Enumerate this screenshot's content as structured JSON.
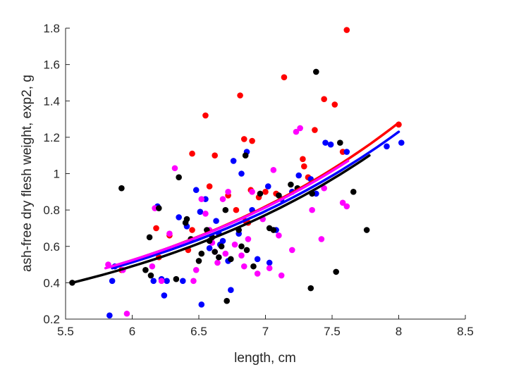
{
  "chart_data": {
    "type": "scatter",
    "title": "",
    "xlabel": "length, cm",
    "ylabel": "ash-free dry flesh weight, exp2, g",
    "xlim": [
      5.5,
      8.5
    ],
    "ylim": [
      0.2,
      1.8
    ],
    "xticks": [
      5.5,
      6,
      6.5,
      7,
      7.5,
      8,
      8.5
    ],
    "xtick_labels": [
      "5.5",
      "6",
      "6.5",
      "7",
      "7.5",
      "8",
      "8.5"
    ],
    "yticks": [
      0.2,
      0.4,
      0.6,
      0.8,
      1.0,
      1.2,
      1.4,
      1.6,
      1.8
    ],
    "ytick_labels": [
      "0.2",
      "0.4",
      "0.6",
      "0.8",
      "1",
      "1.2",
      "1.4",
      "1.6",
      "1.8"
    ],
    "grid": false,
    "legend": "none",
    "series": [
      {
        "color": "#ff0000",
        "x": [
          5.92,
          6.18,
          6.2,
          6.28,
          6.42,
          6.45,
          6.45,
          6.55,
          6.58,
          6.62,
          6.72,
          6.78,
          6.81,
          6.84,
          6.85,
          6.87,
          6.89,
          6.9,
          6.95,
          7.0,
          7.08,
          7.14,
          7.2,
          7.28,
          7.29,
          7.32,
          7.37,
          7.44,
          7.52,
          7.58,
          7.61,
          8.0
        ],
        "y": [
          0.47,
          0.7,
          0.54,
          0.66,
          0.58,
          0.69,
          1.11,
          1.32,
          0.93,
          1.1,
          0.88,
          0.8,
          1.43,
          1.19,
          0.74,
          0.73,
          0.91,
          1.18,
          0.87,
          0.9,
          0.89,
          1.53,
          0.9,
          1.08,
          1.04,
          0.98,
          1.24,
          1.41,
          1.38,
          1.12,
          1.79,
          1.27
        ],
        "fit_x": [
          5.85,
          8.0
        ],
        "fit_y": [
          0.49,
          1.28
        ]
      },
      {
        "color": "#0000ff",
        "x": [
          5.83,
          5.85,
          5.87,
          6.16,
          6.19,
          6.22,
          6.24,
          6.26,
          6.35,
          6.38,
          6.41,
          6.48,
          6.51,
          6.52,
          6.55,
          6.58,
          6.63,
          6.65,
          6.66,
          6.68,
          6.72,
          6.74,
          6.76,
          6.8,
          6.82,
          6.86,
          6.9,
          6.94,
          7.02,
          7.03,
          7.08,
          7.12,
          7.2,
          7.25,
          7.34,
          7.38,
          7.45,
          7.49,
          7.61,
          7.91,
          8.02
        ],
        "y": [
          0.22,
          0.41,
          0.49,
          0.41,
          0.82,
          0.42,
          0.33,
          0.41,
          0.76,
          0.41,
          0.71,
          0.91,
          0.79,
          0.28,
          0.86,
          0.59,
          0.74,
          0.67,
          0.61,
          0.63,
          0.52,
          0.36,
          1.07,
          0.67,
          1.0,
          1.12,
          0.8,
          0.53,
          0.93,
          0.51,
          0.69,
          0.86,
          0.9,
          0.99,
          0.97,
          0.89,
          1.17,
          1.16,
          1.12,
          1.15,
          1.17
        ],
        "fit_x": [
          5.85,
          8.0
        ],
        "fit_y": [
          0.48,
          1.23
        ]
      },
      {
        "color": "#ff00ff",
        "x": [
          5.82,
          5.93,
          5.96,
          6.15,
          6.17,
          6.22,
          6.28,
          6.32,
          6.46,
          6.48,
          6.52,
          6.55,
          6.58,
          6.6,
          6.62,
          6.64,
          6.68,
          6.7,
          6.72,
          6.77,
          6.82,
          6.84,
          6.87,
          6.9,
          6.94,
          6.98,
          7.03,
          7.06,
          7.1,
          7.12,
          7.2,
          7.23,
          7.26,
          7.35,
          7.42,
          7.44,
          7.58,
          7.61
        ],
        "y": [
          0.5,
          0.47,
          0.23,
          0.49,
          0.81,
          0.41,
          0.67,
          1.03,
          0.41,
          0.47,
          0.86,
          0.78,
          0.69,
          0.62,
          0.57,
          0.51,
          0.86,
          0.56,
          0.9,
          0.61,
          0.55,
          0.49,
          0.64,
          0.9,
          0.45,
          0.75,
          0.48,
          1.02,
          0.66,
          0.44,
          0.58,
          1.23,
          1.25,
          0.8,
          0.64,
          0.92,
          0.84,
          0.82
        ],
        "fit_x": [
          5.8,
          7.62
        ],
        "fit_y": [
          0.48,
          1.07
        ]
      },
      {
        "color": "#000000",
        "x": [
          5.55,
          5.92,
          6.1,
          6.13,
          6.14,
          6.2,
          6.33,
          6.35,
          6.4,
          6.41,
          6.44,
          6.5,
          6.52,
          6.56,
          6.58,
          6.6,
          6.62,
          6.65,
          6.67,
          6.7,
          6.71,
          6.74,
          6.8,
          6.82,
          6.85,
          6.86,
          6.91,
          6.96,
          7.03,
          7.06,
          7.1,
          7.19,
          7.24,
          7.34,
          7.35,
          7.38,
          7.53,
          7.56,
          7.66,
          7.76
        ],
        "y": [
          0.4,
          0.92,
          0.47,
          0.65,
          0.44,
          0.81,
          0.42,
          0.98,
          0.73,
          0.75,
          0.64,
          0.52,
          0.56,
          0.69,
          0.63,
          0.65,
          0.57,
          0.54,
          0.6,
          0.8,
          0.3,
          0.53,
          0.69,
          0.6,
          1.1,
          0.58,
          0.49,
          0.89,
          0.7,
          0.69,
          0.88,
          0.94,
          0.92,
          0.37,
          0.89,
          1.56,
          0.46,
          1.17,
          0.9,
          0.69
        ],
        "fit_x": [
          5.55,
          7.78
        ],
        "fit_y": [
          0.4,
          1.1
        ]
      }
    ]
  }
}
